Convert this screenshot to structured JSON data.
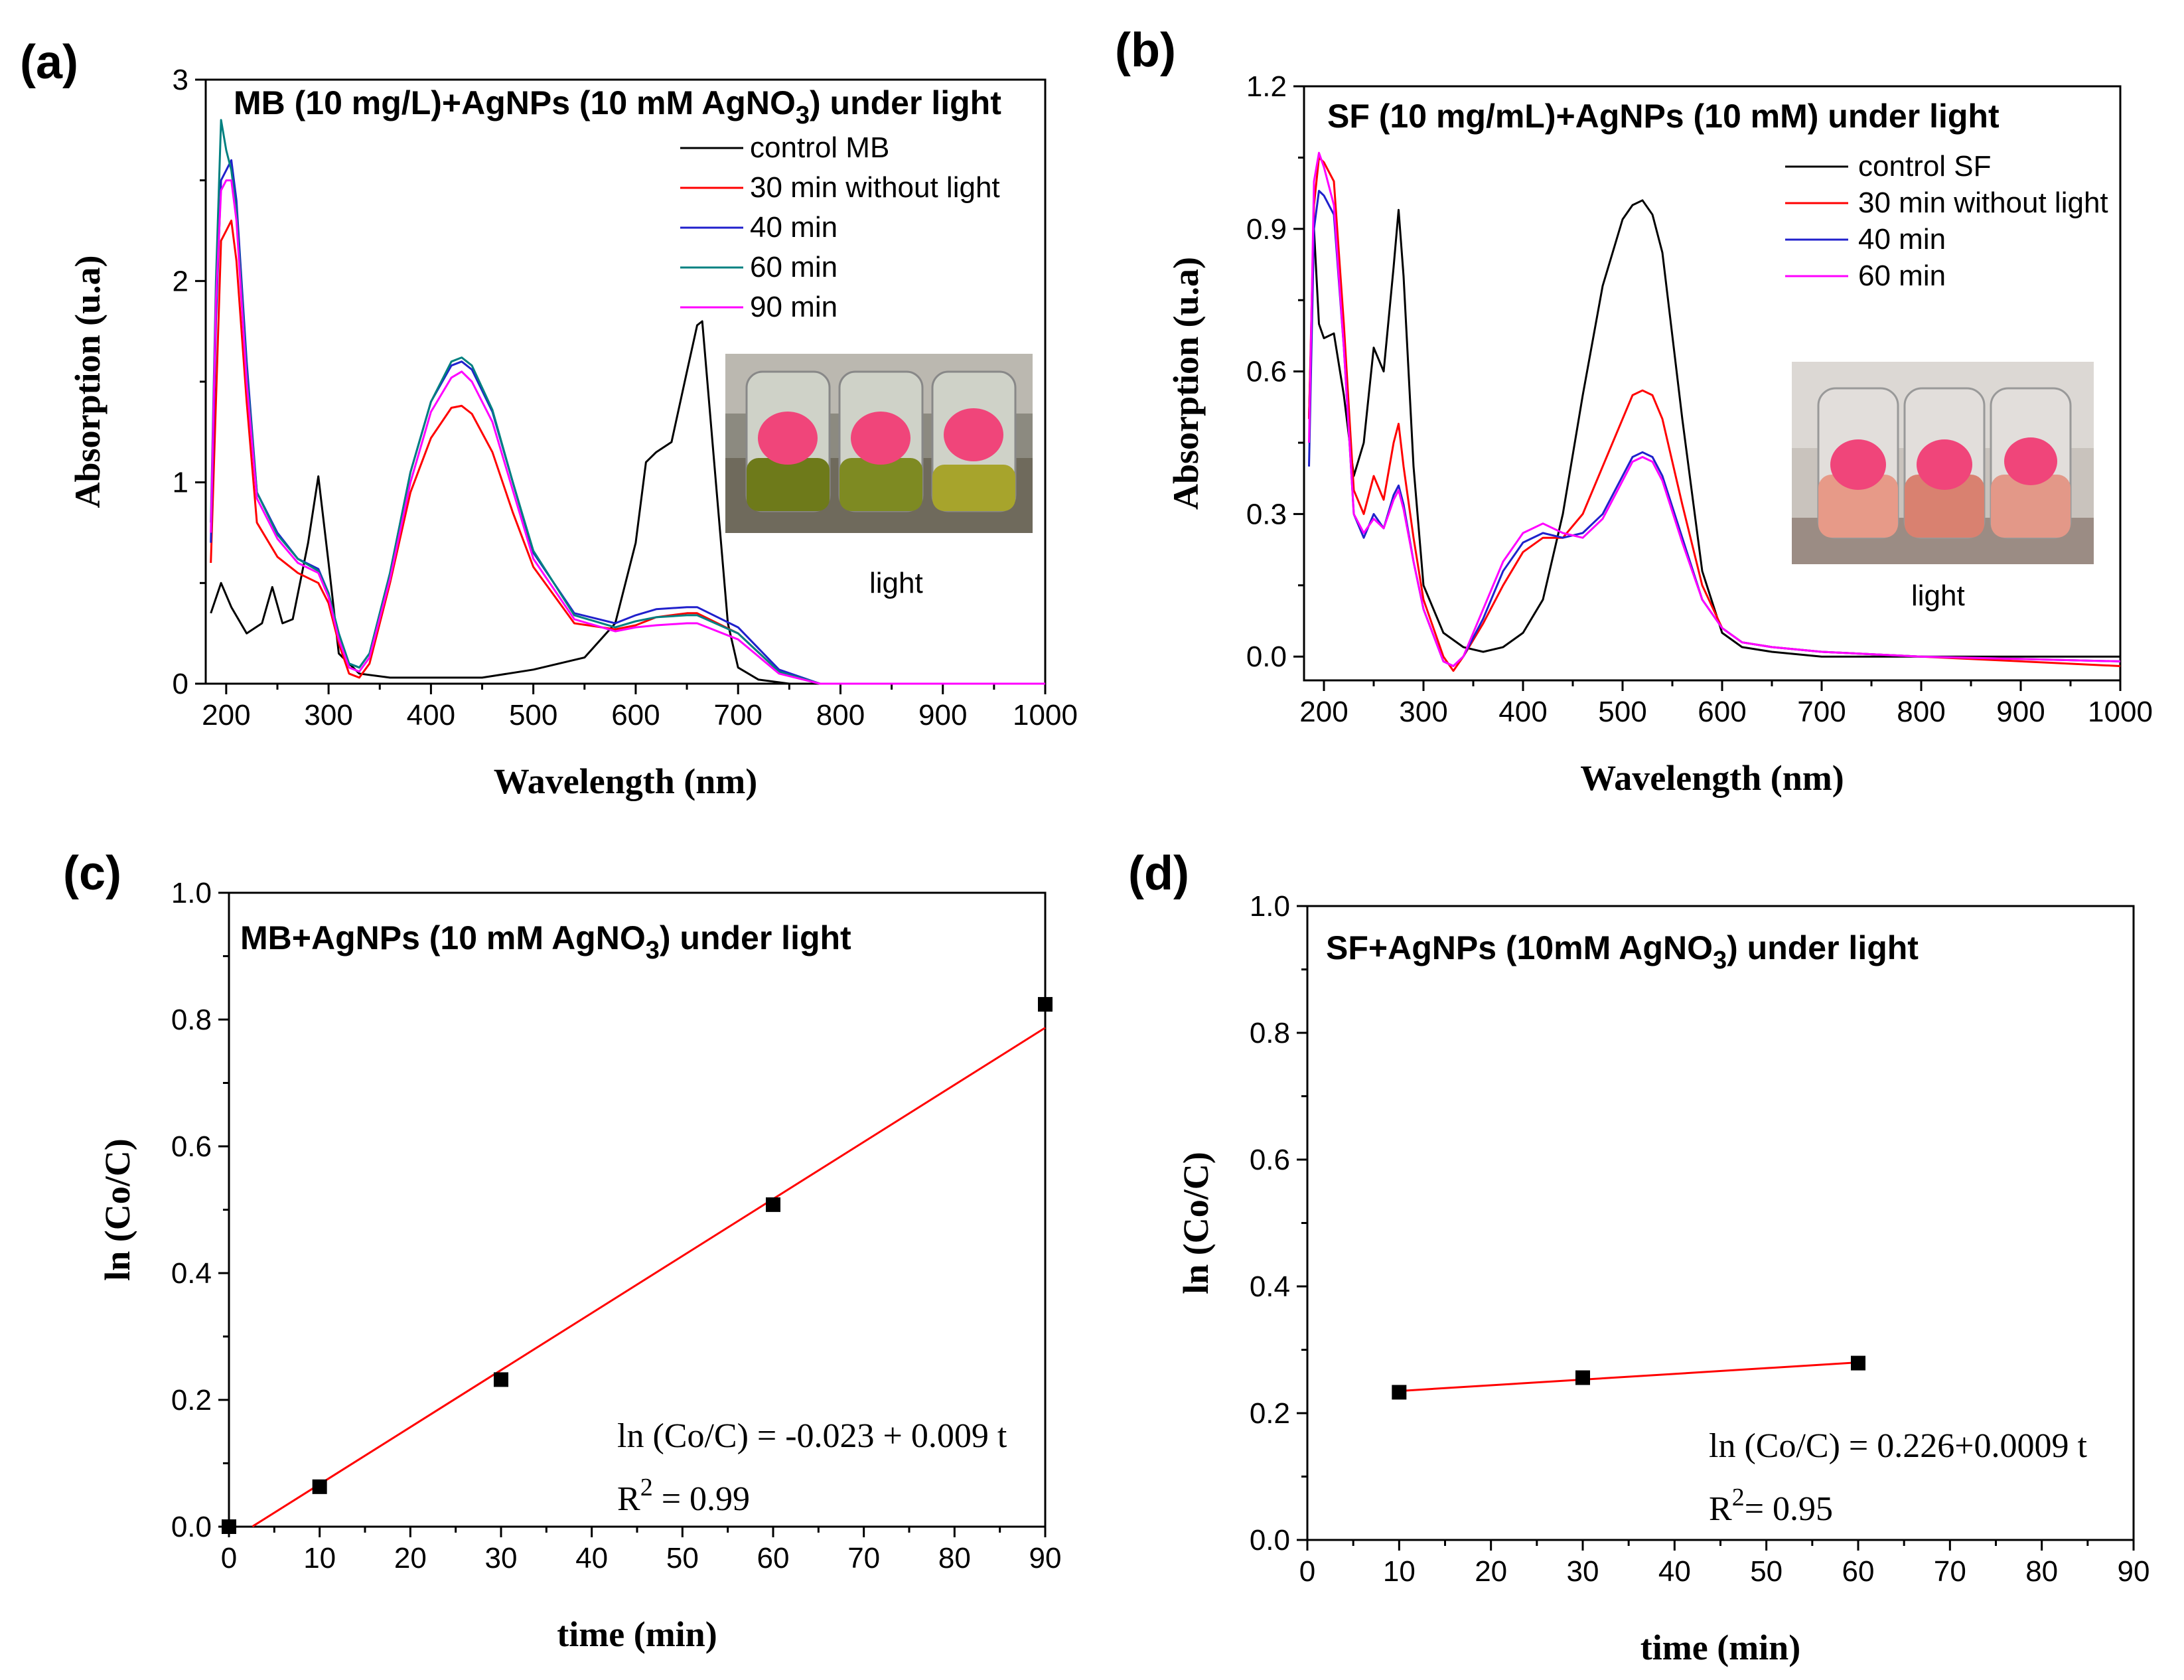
{
  "colors": {
    "control": "#000000",
    "t30": "#ff0000",
    "t40": "#2020cc",
    "t60_a": "#008080",
    "t60_b": "#ff00ff",
    "t90": "#ff00ff",
    "fit": "#ff0000",
    "marker": "#000000"
  },
  "chart_data": [
    {
      "id": "a",
      "panel_label": "(a)",
      "type": "line",
      "title": "MB (10 mg/L)+AgNPs (10 mM AgNO",
      "title_sub": "3",
      "title_tail": ") under light",
      "xlabel": "Wavelength (nm)",
      "ylabel": "Absorption (u.a)",
      "xlim": [
        180,
        1000
      ],
      "ylim": [
        0,
        3
      ],
      "xticks": [
        "200",
        "300",
        "400",
        "500",
        "600",
        "700",
        "800",
        "900",
        "1000"
      ],
      "yticks": [
        "0",
        "1",
        "2",
        "3"
      ],
      "inset_label": "light",
      "legend": [
        "control MB",
        "30 min without light",
        "40 min",
        "60 min",
        "90 min"
      ],
      "series": [
        {
          "name": "control MB",
          "color_key": "control",
          "x": [
            185,
            195,
            205,
            220,
            235,
            245,
            255,
            265,
            280,
            290,
            300,
            310,
            330,
            360,
            400,
            450,
            500,
            550,
            580,
            600,
            610,
            620,
            635,
            650,
            660,
            665,
            675,
            690,
            700,
            720,
            750,
            800,
            1000
          ],
          "y": [
            0.35,
            0.5,
            0.38,
            0.25,
            0.3,
            0.48,
            0.3,
            0.32,
            0.7,
            1.03,
            0.6,
            0.15,
            0.05,
            0.03,
            0.03,
            0.03,
            0.07,
            0.13,
            0.3,
            0.7,
            1.1,
            1.15,
            1.2,
            1.55,
            1.78,
            1.8,
            1.2,
            0.3,
            0.08,
            0.02,
            0.0,
            0.0,
            0.0
          ]
        },
        {
          "name": "30 min without light",
          "color_key": "t30",
          "x": [
            185,
            190,
            195,
            200,
            205,
            210,
            220,
            230,
            250,
            270,
            290,
            300,
            310,
            320,
            330,
            340,
            360,
            380,
            400,
            420,
            430,
            440,
            460,
            480,
            500,
            540,
            580,
            600,
            620,
            650,
            660,
            700,
            740,
            780,
            1000
          ],
          "y": [
            0.6,
            1.4,
            2.2,
            2.25,
            2.3,
            2.1,
            1.4,
            0.8,
            0.63,
            0.55,
            0.5,
            0.4,
            0.2,
            0.05,
            0.03,
            0.1,
            0.5,
            0.95,
            1.22,
            1.37,
            1.38,
            1.34,
            1.15,
            0.85,
            0.58,
            0.3,
            0.27,
            0.29,
            0.33,
            0.35,
            0.35,
            0.25,
            0.06,
            0.0,
            0.0
          ]
        },
        {
          "name": "40 min",
          "color_key": "t40",
          "x": [
            185,
            190,
            195,
            200,
            205,
            210,
            220,
            230,
            250,
            270,
            290,
            300,
            310,
            320,
            330,
            340,
            360,
            380,
            400,
            420,
            430,
            440,
            460,
            480,
            500,
            540,
            580,
            600,
            620,
            650,
            660,
            700,
            740,
            780,
            1000
          ],
          "y": [
            0.7,
            1.8,
            2.5,
            2.55,
            2.6,
            2.4,
            1.6,
            0.95,
            0.75,
            0.62,
            0.57,
            0.45,
            0.25,
            0.1,
            0.08,
            0.15,
            0.55,
            1.05,
            1.4,
            1.58,
            1.6,
            1.56,
            1.35,
            1.0,
            0.65,
            0.35,
            0.3,
            0.34,
            0.37,
            0.38,
            0.38,
            0.28,
            0.07,
            0.0,
            0.0
          ]
        },
        {
          "name": "60 min",
          "color_key": "t60_a",
          "x": [
            185,
            190,
            195,
            200,
            205,
            210,
            220,
            230,
            250,
            270,
            290,
            300,
            310,
            320,
            330,
            340,
            360,
            380,
            400,
            420,
            430,
            440,
            460,
            480,
            500,
            540,
            580,
            600,
            620,
            650,
            660,
            700,
            740,
            780,
            1000
          ],
          "y": [
            0.8,
            2.0,
            2.8,
            2.65,
            2.55,
            2.35,
            1.55,
            0.95,
            0.74,
            0.62,
            0.56,
            0.45,
            0.25,
            0.1,
            0.08,
            0.15,
            0.55,
            1.05,
            1.4,
            1.6,
            1.62,
            1.58,
            1.36,
            1.0,
            0.66,
            0.34,
            0.28,
            0.31,
            0.33,
            0.34,
            0.34,
            0.25,
            0.06,
            0.0,
            0.0
          ]
        },
        {
          "name": "90 min",
          "color_key": "t90",
          "x": [
            185,
            190,
            195,
            200,
            205,
            210,
            220,
            230,
            250,
            270,
            290,
            300,
            310,
            320,
            330,
            340,
            360,
            380,
            400,
            420,
            430,
            440,
            460,
            480,
            500,
            540,
            580,
            600,
            620,
            650,
            660,
            700,
            740,
            780,
            1000
          ],
          "y": [
            0.75,
            1.9,
            2.45,
            2.5,
            2.5,
            2.3,
            1.5,
            0.92,
            0.72,
            0.6,
            0.55,
            0.43,
            0.22,
            0.08,
            0.06,
            0.13,
            0.52,
            1.0,
            1.35,
            1.52,
            1.55,
            1.5,
            1.3,
            0.96,
            0.62,
            0.32,
            0.26,
            0.28,
            0.29,
            0.3,
            0.3,
            0.22,
            0.05,
            0.0,
            0.0
          ]
        }
      ]
    },
    {
      "id": "b",
      "panel_label": "(b)",
      "type": "line",
      "title": "SF  (10 mg/mL)+AgNPs (10 mM) under light",
      "xlabel": "Wavelength (nm)",
      "ylabel": "Absorption (u.a)",
      "xlim": [
        180,
        1000
      ],
      "ylim": [
        -0.05,
        1.2
      ],
      "xticks": [
        "200",
        "300",
        "400",
        "500",
        "600",
        "700",
        "800",
        "900",
        "1000"
      ],
      "yticks": [
        "0.0",
        "0.3",
        "0.6",
        "0.9",
        "1.2"
      ],
      "inset_label": "light",
      "legend": [
        "control SF",
        "30 min without light",
        "40 min",
        "60 min"
      ],
      "series": [
        {
          "name": "control SF",
          "color_key": "control",
          "x": [
            185,
            190,
            195,
            200,
            210,
            220,
            230,
            240,
            250,
            260,
            270,
            275,
            280,
            290,
            300,
            320,
            340,
            360,
            380,
            400,
            420,
            440,
            460,
            480,
            500,
            510,
            520,
            530,
            540,
            560,
            580,
            600,
            620,
            650,
            700,
            800,
            1000
          ],
          "y": [
            0.5,
            0.9,
            0.7,
            0.67,
            0.68,
            0.55,
            0.38,
            0.45,
            0.65,
            0.6,
            0.82,
            0.94,
            0.8,
            0.4,
            0.15,
            0.05,
            0.02,
            0.01,
            0.02,
            0.05,
            0.12,
            0.3,
            0.55,
            0.78,
            0.92,
            0.95,
            0.96,
            0.93,
            0.85,
            0.5,
            0.18,
            0.05,
            0.02,
            0.01,
            0.0,
            0.0,
            0.0
          ]
        },
        {
          "name": "30 min without light",
          "color_key": "t30",
          "x": [
            185,
            190,
            195,
            200,
            210,
            220,
            230,
            240,
            250,
            260,
            270,
            275,
            280,
            290,
            300,
            320,
            330,
            340,
            360,
            380,
            400,
            420,
            440,
            460,
            480,
            500,
            510,
            520,
            530,
            540,
            560,
            580,
            600,
            620,
            650,
            700,
            800,
            1000
          ],
          "y": [
            0.5,
            0.95,
            1.05,
            1.04,
            1.0,
            0.7,
            0.35,
            0.3,
            0.38,
            0.33,
            0.45,
            0.49,
            0.4,
            0.25,
            0.12,
            0.0,
            -0.03,
            0.0,
            0.07,
            0.15,
            0.22,
            0.25,
            0.25,
            0.3,
            0.4,
            0.5,
            0.55,
            0.56,
            0.55,
            0.5,
            0.32,
            0.15,
            0.06,
            0.03,
            0.02,
            0.01,
            0.0,
            -0.02
          ]
        },
        {
          "name": "40 min",
          "color_key": "t40",
          "x": [
            185,
            190,
            195,
            200,
            210,
            220,
            230,
            240,
            250,
            260,
            270,
            275,
            280,
            290,
            300,
            320,
            330,
            340,
            360,
            380,
            400,
            420,
            440,
            460,
            480,
            500,
            510,
            520,
            530,
            540,
            560,
            580,
            600,
            620,
            650,
            700,
            800,
            1000
          ],
          "y": [
            0.4,
            0.9,
            0.98,
            0.97,
            0.93,
            0.65,
            0.3,
            0.25,
            0.3,
            0.27,
            0.34,
            0.36,
            0.32,
            0.2,
            0.1,
            -0.01,
            -0.02,
            0.0,
            0.08,
            0.18,
            0.24,
            0.26,
            0.25,
            0.26,
            0.3,
            0.38,
            0.42,
            0.43,
            0.42,
            0.38,
            0.25,
            0.12,
            0.06,
            0.03,
            0.02,
            0.01,
            0.0,
            -0.01
          ]
        },
        {
          "name": "60 min",
          "color_key": "t60_b",
          "x": [
            185,
            190,
            195,
            200,
            210,
            220,
            230,
            240,
            250,
            260,
            270,
            275,
            280,
            290,
            300,
            320,
            330,
            340,
            360,
            380,
            400,
            420,
            440,
            460,
            480,
            500,
            510,
            520,
            530,
            540,
            560,
            580,
            600,
            620,
            650,
            700,
            800,
            1000
          ],
          "y": [
            0.45,
            1.0,
            1.06,
            1.03,
            0.95,
            0.65,
            0.3,
            0.26,
            0.29,
            0.27,
            0.33,
            0.35,
            0.31,
            0.2,
            0.1,
            -0.01,
            -0.02,
            0.0,
            0.1,
            0.2,
            0.26,
            0.28,
            0.26,
            0.25,
            0.29,
            0.37,
            0.41,
            0.42,
            0.41,
            0.37,
            0.24,
            0.12,
            0.06,
            0.03,
            0.02,
            0.01,
            0.0,
            -0.01
          ]
        }
      ]
    },
    {
      "id": "c",
      "panel_label": "(c)",
      "type": "scatter",
      "title": "MB+AgNPs (10 mM AgNO",
      "title_sub": "3",
      "title_tail": ") under light",
      "xlabel": "time (min)",
      "ylabel": "ln (Co/C)",
      "xlim": [
        0,
        90
      ],
      "ylim": [
        0,
        1.0
      ],
      "xticks": [
        "0",
        "10",
        "20",
        "30",
        "40",
        "50",
        "60",
        "70",
        "80",
        "90"
      ],
      "yticks": [
        "0.0",
        "0.2",
        "0.4",
        "0.6",
        "0.8",
        "1.0"
      ],
      "points": {
        "x": [
          0,
          10,
          30,
          60,
          90
        ],
        "y": [
          0.0,
          0.063,
          0.232,
          0.508,
          0.824
        ]
      },
      "fit": {
        "intercept": -0.023,
        "slope": 0.009,
        "x_range": [
          2.6,
          90
        ]
      },
      "equation": "ln (Co/C) = -0.023 + 0.009 t",
      "r2_label": "R",
      "r2_sup": "2",
      "r2_value": " = 0.99"
    },
    {
      "id": "d",
      "panel_label": "(d)",
      "type": "scatter",
      "title": "SF+AgNPs (10mM AgNO",
      "title_sub": "3",
      "title_tail": ") under light",
      "xlabel": "time (min)",
      "ylabel": "ln (Co/C)",
      "xlim": [
        0,
        90
      ],
      "ylim": [
        0,
        1.0
      ],
      "xticks": [
        "0",
        "10",
        "20",
        "30",
        "40",
        "50",
        "60",
        "70",
        "80",
        "90"
      ],
      "yticks": [
        "0.0",
        "0.2",
        "0.4",
        "0.6",
        "0.8",
        "1.0"
      ],
      "points": {
        "x": [
          10,
          30,
          60
        ],
        "y": [
          0.233,
          0.256,
          0.279
        ]
      },
      "fit": {
        "intercept": 0.226,
        "slope": 0.0009,
        "x_range": [
          10,
          60
        ]
      },
      "equation": "ln (Co/C) = 0.226+0.0009 t",
      "r2_label": "R",
      "r2_sup": "2",
      "r2_value": "= 0.95"
    }
  ]
}
